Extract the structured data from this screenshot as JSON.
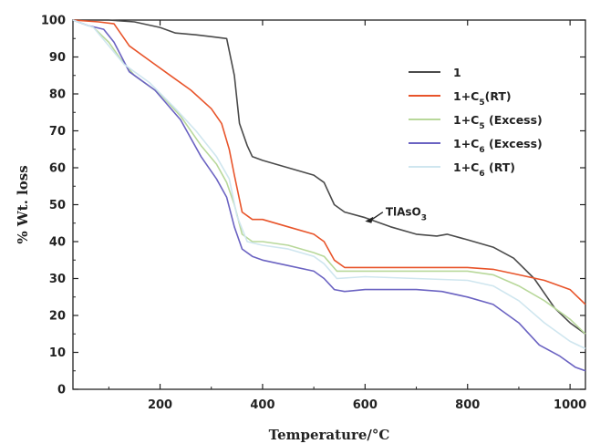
{
  "chart_data": {
    "type": "line",
    "title": "",
    "xlabel": "Temperature/°C",
    "ylabel": "% Wt. loss",
    "xlim": [
      30,
      1030
    ],
    "ylim": [
      0,
      100
    ],
    "xticks": [
      200,
      400,
      600,
      800,
      1000
    ],
    "yticks": [
      0,
      10,
      20,
      30,
      40,
      50,
      60,
      70,
      80,
      90,
      100
    ],
    "grid": false,
    "legend_position": "top-right",
    "series": [
      {
        "name": "1",
        "legend": {
          "base": "1",
          "sub": "",
          "suffix": ""
        },
        "color": "#4a4a4a",
        "points": [
          [
            30,
            100
          ],
          [
            60,
            100
          ],
          [
            100,
            100
          ],
          [
            150,
            99.5
          ],
          [
            200,
            98
          ],
          [
            230,
            96.5
          ],
          [
            270,
            96
          ],
          [
            300,
            95.5
          ],
          [
            330,
            95
          ],
          [
            345,
            85
          ],
          [
            355,
            72
          ],
          [
            370,
            66
          ],
          [
            380,
            63
          ],
          [
            400,
            62
          ],
          [
            450,
            60
          ],
          [
            500,
            58
          ],
          [
            520,
            56
          ],
          [
            540,
            50
          ],
          [
            560,
            48
          ],
          [
            600,
            46.5
          ],
          [
            650,
            44
          ],
          [
            700,
            42
          ],
          [
            740,
            41.5
          ],
          [
            760,
            42
          ],
          [
            800,
            40.5
          ],
          [
            850,
            38.5
          ],
          [
            890,
            35.5
          ],
          [
            930,
            30
          ],
          [
            970,
            22
          ],
          [
            1000,
            18
          ],
          [
            1030,
            15
          ]
        ]
      },
      {
        "name": "1+C5(RT)",
        "legend": {
          "base": "1+C",
          "sub": "5",
          "suffix": "(RT)"
        },
        "color": "#e8542a",
        "points": [
          [
            30,
            100
          ],
          [
            80,
            99.5
          ],
          [
            110,
            99
          ],
          [
            140,
            93
          ],
          [
            180,
            89
          ],
          [
            220,
            85
          ],
          [
            260,
            81
          ],
          [
            300,
            76
          ],
          [
            320,
            72
          ],
          [
            335,
            65
          ],
          [
            345,
            58
          ],
          [
            360,
            48
          ],
          [
            380,
            46
          ],
          [
            400,
            46
          ],
          [
            450,
            44
          ],
          [
            500,
            42
          ],
          [
            520,
            40
          ],
          [
            540,
            35
          ],
          [
            560,
            33
          ],
          [
            600,
            33
          ],
          [
            700,
            33
          ],
          [
            800,
            33
          ],
          [
            850,
            32.5
          ],
          [
            900,
            31
          ],
          [
            950,
            29.5
          ],
          [
            1000,
            27
          ],
          [
            1030,
            23
          ]
        ]
      },
      {
        "name": "1+C5 (Excess)",
        "legend": {
          "base": "1+C",
          "sub": "5",
          "suffix": " (Excess)"
        },
        "color": "#b8d89a",
        "points": [
          [
            30,
            100
          ],
          [
            70,
            98
          ],
          [
            100,
            94
          ],
          [
            120,
            90
          ],
          [
            150,
            85
          ],
          [
            200,
            80
          ],
          [
            240,
            74
          ],
          [
            280,
            66
          ],
          [
            310,
            61
          ],
          [
            330,
            56
          ],
          [
            345,
            50
          ],
          [
            360,
            42
          ],
          [
            380,
            40
          ],
          [
            400,
            40
          ],
          [
            450,
            39
          ],
          [
            500,
            37
          ],
          [
            520,
            36
          ],
          [
            545,
            32
          ],
          [
            600,
            32
          ],
          [
            700,
            32
          ],
          [
            800,
            32
          ],
          [
            850,
            31
          ],
          [
            900,
            28
          ],
          [
            950,
            24
          ],
          [
            1000,
            19
          ],
          [
            1030,
            15
          ]
        ]
      },
      {
        "name": "1+C6 (Excess)",
        "legend": {
          "base": "1+C",
          "sub": "6",
          "suffix": " (Excess)"
        },
        "color": "#6b63c2",
        "points": [
          [
            30,
            100
          ],
          [
            60,
            98.5
          ],
          [
            90,
            97.5
          ],
          [
            110,
            94
          ],
          [
            140,
            86
          ],
          [
            190,
            81
          ],
          [
            240,
            73
          ],
          [
            280,
            63
          ],
          [
            310,
            57
          ],
          [
            330,
            52
          ],
          [
            345,
            44
          ],
          [
            360,
            38
          ],
          [
            380,
            36
          ],
          [
            400,
            35
          ],
          [
            450,
            33.5
          ],
          [
            500,
            32
          ],
          [
            520,
            30
          ],
          [
            540,
            27
          ],
          [
            560,
            26.5
          ],
          [
            600,
            27
          ],
          [
            700,
            27
          ],
          [
            750,
            26.5
          ],
          [
            800,
            25
          ],
          [
            850,
            23
          ],
          [
            900,
            18
          ],
          [
            940,
            12
          ],
          [
            980,
            9
          ],
          [
            1010,
            6
          ],
          [
            1030,
            5
          ]
        ]
      },
      {
        "name": "1+C6 (RT)",
        "legend": {
          "base": "1+C",
          "sub": "6",
          "suffix": " (RT)"
        },
        "color": "#cfe6ef",
        "points": [
          [
            30,
            100
          ],
          [
            70,
            98
          ],
          [
            100,
            93
          ],
          [
            130,
            88
          ],
          [
            180,
            83
          ],
          [
            230,
            76
          ],
          [
            270,
            70
          ],
          [
            310,
            63
          ],
          [
            335,
            57
          ],
          [
            350,
            47
          ],
          [
            370,
            40
          ],
          [
            400,
            39
          ],
          [
            450,
            38
          ],
          [
            500,
            36
          ],
          [
            520,
            34
          ],
          [
            545,
            30
          ],
          [
            600,
            30.5
          ],
          [
            700,
            30
          ],
          [
            800,
            29.5
          ],
          [
            850,
            28
          ],
          [
            900,
            24
          ],
          [
            950,
            18
          ],
          [
            1000,
            13
          ],
          [
            1030,
            11
          ]
        ]
      }
    ],
    "annotations": [
      {
        "base": "TlAsO",
        "sub": "3",
        "x": 640,
        "y": 47,
        "arrow_to": [
          600,
          45.5
        ]
      }
    ]
  }
}
